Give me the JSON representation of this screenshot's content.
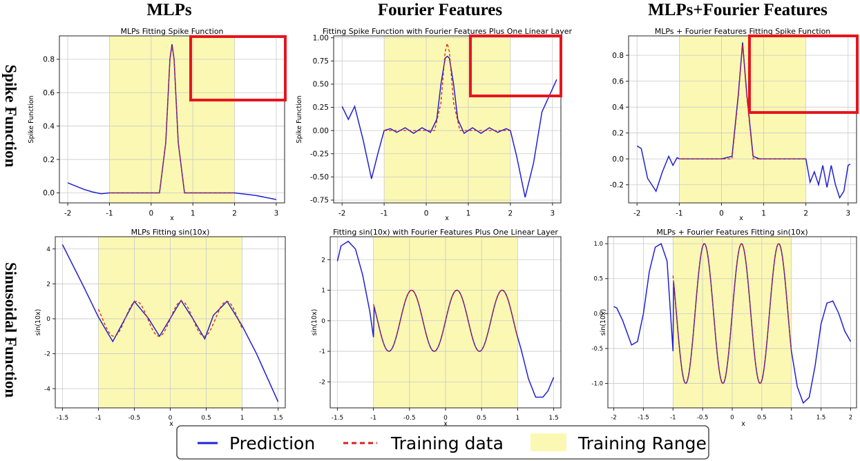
{
  "figure": {
    "column_titles": [
      "MLPs",
      "Fourier Features",
      "MLPs+Fourier Features"
    ],
    "row_titles": [
      "Spike Function",
      "Sinusoidal Function"
    ]
  },
  "colors": {
    "prediction": "#1f1fd6",
    "training": "#d62020",
    "range": "#fbf8b3",
    "zoom_box": "#e8141c"
  },
  "legend": {
    "prediction": "Prediction",
    "training_data": "Training data",
    "training_range": "Training Range"
  },
  "chart_data": [
    {
      "type": "line",
      "title": "MLPs Fitting Spike Function",
      "xlabel": "x",
      "ylabel": "Spike Function",
      "xlim": [
        -2.2,
        3.2
      ],
      "ylim": [
        -0.06,
        0.94
      ],
      "xticks": [
        -2,
        -1,
        0,
        1,
        2,
        3
      ],
      "yticks": [
        0.0,
        0.2,
        0.4,
        0.6,
        0.8
      ],
      "training_range": [
        -1,
        2
      ],
      "grid": true,
      "series": [
        {
          "role": "prediction",
          "x": [
            -2,
            -1.8,
            -1.6,
            -1.4,
            -1.2,
            -1.0,
            -0.6,
            -0.2,
            0.2,
            0.35,
            0.45,
            0.5,
            0.55,
            0.65,
            0.8,
            1.0,
            1.5,
            2.0,
            2.5,
            3.0
          ],
          "y": [
            0.06,
            0.04,
            0.02,
            0.005,
            -0.005,
            0.0,
            0.0,
            0.0,
            0.0,
            0.3,
            0.8,
            0.89,
            0.8,
            0.3,
            0.0,
            0.0,
            0.0,
            0.0,
            -0.015,
            -0.04
          ]
        },
        {
          "role": "training",
          "x": [
            -1.0,
            -0.6,
            -0.2,
            0.2,
            0.35,
            0.45,
            0.5,
            0.55,
            0.65,
            0.8,
            1.0,
            1.5,
            2.0
          ],
          "y": [
            0.0,
            0.0,
            0.0,
            0.0,
            0.3,
            0.8,
            0.88,
            0.8,
            0.3,
            0.0,
            0.0,
            0.0,
            0.0
          ]
        }
      ]
    },
    {
      "type": "line",
      "title": "Fitting Spike Function with Fourier Features Plus One Linear Layer",
      "xlabel": "x",
      "ylabel": "Spike Function",
      "xlim": [
        -2.2,
        3.2
      ],
      "ylim": [
        -0.78,
        1.02
      ],
      "xticks": [
        -2,
        -1,
        0,
        1,
        2,
        3
      ],
      "yticks": [
        -0.75,
        -0.5,
        -0.25,
        0.0,
        0.25,
        0.5,
        0.75,
        1.0
      ],
      "training_range": [
        -1,
        2
      ],
      "grid": true,
      "series": [
        {
          "role": "prediction",
          "x": [
            -2.0,
            -1.85,
            -1.7,
            -1.5,
            -1.3,
            -1.15,
            -1.0,
            -0.85,
            -0.7,
            -0.5,
            -0.3,
            -0.1,
            0.1,
            0.25,
            0.35,
            0.45,
            0.5,
            0.55,
            0.65,
            0.75,
            0.9,
            1.1,
            1.3,
            1.5,
            1.7,
            1.9,
            2.0,
            2.15,
            2.35,
            2.55,
            2.75,
            2.95,
            3.1
          ],
          "y": [
            0.26,
            0.12,
            0.26,
            -0.1,
            -0.52,
            -0.25,
            0.0,
            0.02,
            -0.02,
            0.03,
            -0.03,
            0.03,
            -0.02,
            0.12,
            0.5,
            0.78,
            0.8,
            0.78,
            0.5,
            0.12,
            -0.03,
            0.03,
            -0.03,
            0.03,
            -0.02,
            0.02,
            0.0,
            -0.28,
            -0.72,
            -0.35,
            0.2,
            0.4,
            0.55
          ]
        },
        {
          "role": "training",
          "x": [
            -1.0,
            0.2,
            0.35,
            0.45,
            0.5,
            0.55,
            0.65,
            0.8,
            2.0
          ],
          "y": [
            0.0,
            0.0,
            0.3,
            0.85,
            0.94,
            0.85,
            0.3,
            0.0,
            0.0
          ]
        }
      ]
    },
    {
      "type": "line",
      "title": "MLPs + Fourier Features Fitting Spike Function",
      "xlabel": "x",
      "ylabel": "",
      "xlim": [
        -2.2,
        3.2
      ],
      "ylim": [
        -0.34,
        0.95
      ],
      "xticks": [
        -2,
        -1,
        0,
        1,
        2,
        3
      ],
      "yticks": [
        -0.2,
        0.0,
        0.2,
        0.4,
        0.6,
        0.8
      ],
      "xtick_labels": [
        "-2",
        "-1",
        "0",
        "1",
        "2",
        "3"
      ],
      "ytick_labels": [
        "-0.2",
        "0.0",
        "0.2",
        "0.4",
        "0.6",
        "0.8"
      ],
      "training_range": [
        -1,
        2
      ],
      "grid": true,
      "series": [
        {
          "role": "prediction",
          "x": [
            -2.0,
            -1.9,
            -1.75,
            -1.55,
            -1.4,
            -1.25,
            -1.15,
            -1.05,
            -1.0,
            -0.5,
            0.0,
            0.25,
            0.4,
            0.5,
            0.6,
            0.75,
            0.9,
            1.3,
            1.7,
            2.0,
            2.1,
            2.2,
            2.3,
            2.4,
            2.5,
            2.6,
            2.7,
            2.8,
            2.9,
            3.0,
            3.05
          ],
          "y": [
            0.1,
            0.08,
            -0.15,
            -0.25,
            -0.1,
            0.02,
            -0.05,
            0.01,
            0.0,
            0.0,
            0.0,
            0.02,
            0.5,
            0.9,
            0.5,
            0.02,
            0.0,
            0.0,
            0.0,
            0.0,
            -0.18,
            -0.1,
            -0.2,
            -0.05,
            -0.22,
            -0.05,
            -0.2,
            -0.3,
            -0.25,
            -0.05,
            -0.04
          ]
        },
        {
          "role": "training",
          "x": [
            -1.0,
            0.25,
            0.4,
            0.5,
            0.6,
            0.75,
            2.0
          ],
          "y": [
            0.0,
            0.0,
            0.48,
            0.88,
            0.48,
            0.0,
            0.0
          ]
        }
      ]
    },
    {
      "type": "line",
      "title": "MLPs Fitting sin(10x)",
      "xlabel": "x",
      "ylabel": "sin(10x)",
      "xlim": [
        -1.6,
        1.6
      ],
      "ylim": [
        -5.1,
        4.7
      ],
      "xticks": [
        -1.5,
        -1.0,
        -0.5,
        0.0,
        0.5,
        1.0,
        1.5
      ],
      "yticks": [
        -4,
        -2,
        0,
        2,
        4
      ],
      "training_range": [
        -1,
        1
      ],
      "grid": true,
      "series": [
        {
          "role": "prediction",
          "x": [
            -1.5,
            -1.2,
            -1.0,
            -0.8,
            -0.5,
            -0.3,
            -0.15,
            0.15,
            0.3,
            0.48,
            0.6,
            0.79,
            1.0,
            1.2,
            1.5
          ],
          "y": [
            4.25,
            1.8,
            0.1,
            -1.3,
            1.0,
            0.0,
            -1.0,
            1.05,
            0.1,
            -1.15,
            0.2,
            1.0,
            -0.4,
            -2.0,
            -4.75
          ]
        },
        {
          "role": "training",
          "x": [],
          "y": [],
          "function": "sin(10x)",
          "domain": [
            -1,
            1
          ]
        }
      ]
    },
    {
      "type": "line",
      "title": "Fitting sin(10x) with Fourier Features Plus One Linear Layer",
      "xlabel": "x",
      "ylabel": "sin(10x)",
      "xlim": [
        -1.6,
        1.6
      ],
      "ylim": [
        -2.85,
        2.75
      ],
      "xticks": [
        -1.5,
        -1.0,
        -0.5,
        0.0,
        0.5,
        1.0,
        1.5
      ],
      "yticks": [
        -2,
        -1,
        0,
        1,
        2
      ],
      "training_range": [
        -1,
        1
      ],
      "grid": true,
      "series": [
        {
          "role": "prediction",
          "x": [
            -1.5,
            -1.45,
            -1.35,
            -1.25,
            -1.15,
            -1.05,
            -1.0,
            1.0,
            1.05,
            1.15,
            1.25,
            1.35,
            1.42,
            1.5
          ],
          "y": [
            1.95,
            2.45,
            2.6,
            2.35,
            1.5,
            0.3,
            -0.54,
            -0.54,
            -0.95,
            -1.9,
            -2.5,
            -2.5,
            -2.3,
            -1.85
          ],
          "between_range": "sin(10x)"
        },
        {
          "role": "training",
          "x": [],
          "y": [],
          "function": "sin(10x)",
          "domain": [
            -1,
            1
          ]
        }
      ]
    },
    {
      "type": "line",
      "title": "MLPs + Fourier Features Fitting sin(10x)",
      "xlabel": "x",
      "ylabel": "sin(10x)",
      "xlim": [
        -2.1,
        2.1
      ],
      "ylim": [
        -1.35,
        1.1
      ],
      "xticks": [
        -2.0,
        -1.5,
        -1.0,
        -0.5,
        0.0,
        0.5,
        1.0,
        1.5,
        2.0
      ],
      "yticks": [
        -1.0,
        -0.5,
        0.0,
        0.5,
        1.0
      ],
      "training_range": [
        -1,
        1
      ],
      "grid": true,
      "series": [
        {
          "role": "prediction",
          "x": [
            -2.0,
            -1.95,
            -1.85,
            -1.7,
            -1.6,
            -1.5,
            -1.4,
            -1.3,
            -1.2,
            -1.1,
            -1.0,
            1.0,
            1.1,
            1.2,
            1.3,
            1.4,
            1.5,
            1.6,
            1.7,
            1.8,
            1.9,
            2.0
          ],
          "y": [
            0.1,
            0.08,
            -0.1,
            -0.45,
            -0.4,
            0.0,
            0.6,
            0.95,
            1.0,
            0.75,
            -0.54,
            -0.54,
            -1.05,
            -1.28,
            -1.2,
            -0.75,
            -0.15,
            0.15,
            0.18,
            0.0,
            -0.25,
            -0.4
          ],
          "between_range": "sin(10x)"
        },
        {
          "role": "training",
          "x": [],
          "y": [],
          "function": "sin(10x)",
          "domain": [
            -1,
            1
          ]
        }
      ]
    }
  ]
}
